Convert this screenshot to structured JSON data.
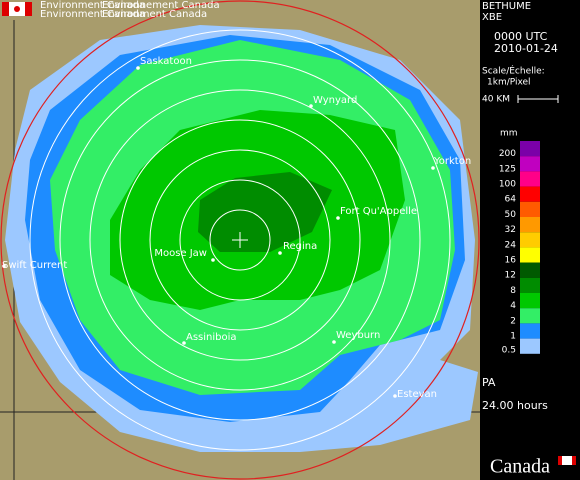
{
  "header": {
    "agency": [
      "Environment Canada",
      "Environnement Canada"
    ]
  },
  "station": {
    "name": "BETHUME",
    "code": "XBE",
    "time": "0000 UTC",
    "date": "2010-01-24"
  },
  "scale": {
    "title": "Scale/Échelle:",
    "resolution": "1km/Pixel",
    "bar": "40 KM"
  },
  "legend": {
    "unit": "mm",
    "entries": [
      {
        "label": 200,
        "color": "#7a00a8"
      },
      {
        "label": 125,
        "color": "#c000c0"
      },
      {
        "label": 100,
        "color": "#ff0088"
      },
      {
        "label": 64,
        "color": "#ff0000"
      },
      {
        "label": 50,
        "color": "#ff5a00"
      },
      {
        "label": 32,
        "color": "#ff9900"
      },
      {
        "label": 24,
        "color": "#ffcc00"
      },
      {
        "label": 16,
        "color": "#ffff00"
      },
      {
        "label": 12,
        "color": "#005a00"
      },
      {
        "label": 8,
        "color": "#008c00"
      },
      {
        "label": 4,
        "color": "#00c800"
      },
      {
        "label": 2,
        "color": "#33ee66"
      },
      {
        "label": 1,
        "color": "#1e8cff"
      },
      {
        "label": 0.5,
        "color": "#9cc8ff"
      }
    ]
  },
  "product": {
    "type": "PA",
    "period": "24.00 hours"
  },
  "footer": {
    "wordmark": "Canada"
  },
  "cities": [
    "Saskatoon",
    "Wynyard",
    "Yorkton",
    "Fort Qu'Appelle",
    "Regina",
    "Moose Jaw",
    "Swift Current",
    "Assiniboia",
    "Weyburn",
    "Estevan"
  ]
}
